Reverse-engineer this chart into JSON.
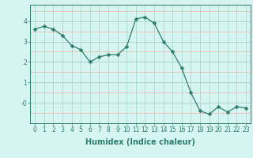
{
  "x": [
    0,
    1,
    2,
    3,
    4,
    5,
    6,
    7,
    8,
    9,
    10,
    11,
    12,
    13,
    14,
    15,
    16,
    17,
    18,
    19,
    20,
    21,
    22,
    23
  ],
  "y": [
    3.6,
    3.75,
    3.6,
    3.3,
    2.8,
    2.6,
    2.0,
    2.25,
    2.35,
    2.35,
    2.75,
    4.1,
    4.2,
    3.9,
    3.0,
    2.5,
    1.7,
    0.5,
    -0.4,
    -0.55,
    -0.2,
    -0.45,
    -0.2,
    -0.25
  ],
  "line_color": "#2d7d6e",
  "marker": "D",
  "marker_size": 2.5,
  "bg_color": "#d6f5f0",
  "grid_color_major": "#a8d8d0",
  "grid_color_minor": "#f0b0b0",
  "xlabel": "Humidex (Indice chaleur)",
  "xlim": [
    -0.5,
    23.5
  ],
  "ylim": [
    -1.0,
    4.8
  ],
  "yticks": [
    0,
    1,
    2,
    3,
    4
  ],
  "ytick_labels": [
    "-0",
    "1",
    "2",
    "3",
    "4"
  ],
  "xtick_labels": [
    "0",
    "1",
    "2",
    "3",
    "4",
    "5",
    "6",
    "7",
    "8",
    "9",
    "10",
    "11",
    "12",
    "13",
    "14",
    "15",
    "16",
    "17",
    "18",
    "19",
    "20",
    "21",
    "22",
    "23"
  ],
  "font_color": "#2d7d6e",
  "tick_font_size": 5.5,
  "label_font_size": 7
}
